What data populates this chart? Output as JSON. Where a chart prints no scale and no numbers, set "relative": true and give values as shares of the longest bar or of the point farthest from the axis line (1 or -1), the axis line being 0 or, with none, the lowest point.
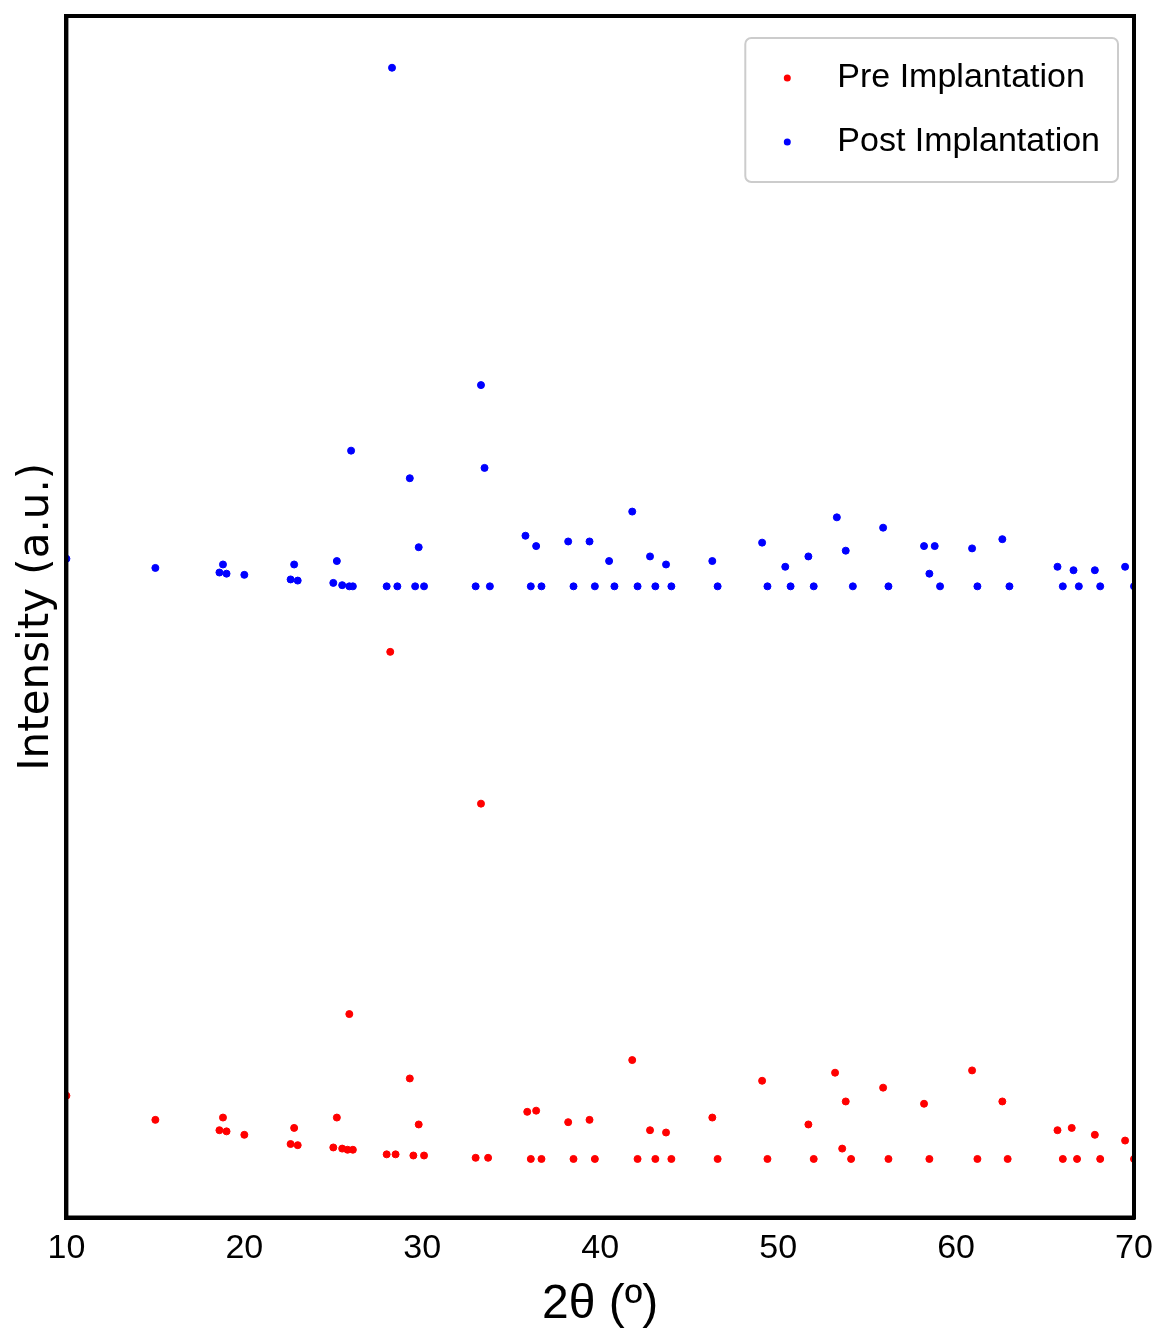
{
  "chart_data": {
    "type": "scatter",
    "xlabel": "2θ (º)",
    "ylabel": "Intensity (a.u.)",
    "relative": true,
    "xlim": [
      10,
      70
    ],
    "xticks": [
      10,
      20,
      30,
      40,
      50,
      60,
      70
    ],
    "grid": false,
    "legend": "top right",
    "marker": "circle",
    "series": [
      {
        "name": "Pre Implantation",
        "color": "#ff0000",
        "x": [
          10,
          15,
          18.6,
          18.8,
          19.0,
          20,
          22.6,
          22.8,
          23.0,
          25,
          25.2,
          25.5,
          25.8,
          25.9,
          26.1,
          28.0,
          28.2,
          28.5,
          29.3,
          29.5,
          29.8,
          30.1,
          33.0,
          33.3,
          33.7,
          35.9,
          36.1,
          36.4,
          36.7,
          38.2,
          38.5,
          39.4,
          39.7,
          41.8,
          42.1,
          42.8,
          43.1,
          43.7,
          44.0,
          46.3,
          46.6,
          49.1,
          49.4,
          51.7,
          52.0,
          53.2,
          53.6,
          53.8,
          54.1,
          55.9,
          56.2,
          58.2,
          58.5,
          60.9,
          61.2,
          62.6,
          62.9,
          65.7,
          66.0,
          66.5,
          66.8,
          67.8,
          68.1,
          69.5,
          70
        ],
        "values": [
          0.106,
          0.085,
          0.076,
          0.087,
          0.075,
          0.072,
          0.064,
          0.078,
          0.063,
          0.061,
          0.087,
          0.06,
          0.059,
          0.177,
          0.059,
          0.055,
          0.492,
          0.055,
          0.121,
          0.054,
          0.081,
          0.054,
          0.052,
          0.36,
          0.052,
          0.092,
          0.051,
          0.093,
          0.051,
          0.083,
          0.051,
          0.085,
          0.051,
          0.137,
          0.051,
          0.076,
          0.051,
          0.074,
          0.051,
          0.087,
          0.051,
          0.119,
          0.051,
          0.081,
          0.051,
          0.126,
          0.06,
          0.101,
          0.051,
          0.113,
          0.051,
          0.099,
          0.051,
          0.128,
          0.051,
          0.101,
          0.051,
          0.076,
          0.051,
          0.078,
          0.051,
          0.072,
          0.051,
          0.067,
          0.051
        ]
      },
      {
        "name": "Post Implantation",
        "color": "#0000ff",
        "x": [
          10,
          15,
          18.6,
          18.8,
          19.0,
          20,
          22.6,
          22.8,
          23.0,
          25,
          25.2,
          25.5,
          25.9,
          26.0,
          26.1,
          28.0,
          28.3,
          28.6,
          29.3,
          29.6,
          29.8,
          30.1,
          33.0,
          33.3,
          33.5,
          33.8,
          35.8,
          36.1,
          36.4,
          36.7,
          38.2,
          38.5,
          39.4,
          39.7,
          40.5,
          40.8,
          41.8,
          42.1,
          42.8,
          43.1,
          43.7,
          44.0,
          46.3,
          46.6,
          49.1,
          49.4,
          50.4,
          50.7,
          51.7,
          52.0,
          53.3,
          53.8,
          54.2,
          55.9,
          56.2,
          58.2,
          58.5,
          58.8,
          59.1,
          60.9,
          61.2,
          62.6,
          63.0,
          65.7,
          66.0,
          66.6,
          66.9,
          67.8,
          68.1,
          69.5,
          70
        ],
        "values": [
          0.573,
          0.565,
          0.561,
          0.568,
          0.56,
          0.559,
          0.555,
          0.568,
          0.554,
          0.552,
          0.571,
          0.55,
          0.549,
          0.667,
          0.549,
          0.549,
          1.0,
          0.549,
          0.643,
          0.549,
          0.583,
          0.549,
          0.549,
          0.724,
          0.652,
          0.549,
          0.593,
          0.549,
          0.584,
          0.549,
          0.588,
          0.549,
          0.588,
          0.549,
          0.571,
          0.549,
          0.614,
          0.549,
          0.575,
          0.549,
          0.568,
          0.549,
          0.571,
          0.549,
          0.587,
          0.549,
          0.566,
          0.549,
          0.575,
          0.549,
          0.609,
          0.58,
          0.549,
          0.6,
          0.549,
          0.584,
          0.56,
          0.584,
          0.549,
          0.582,
          0.549,
          0.59,
          0.549,
          0.566,
          0.549,
          0.563,
          0.549,
          0.563,
          0.549,
          0.566,
          0.549
        ]
      }
    ]
  }
}
